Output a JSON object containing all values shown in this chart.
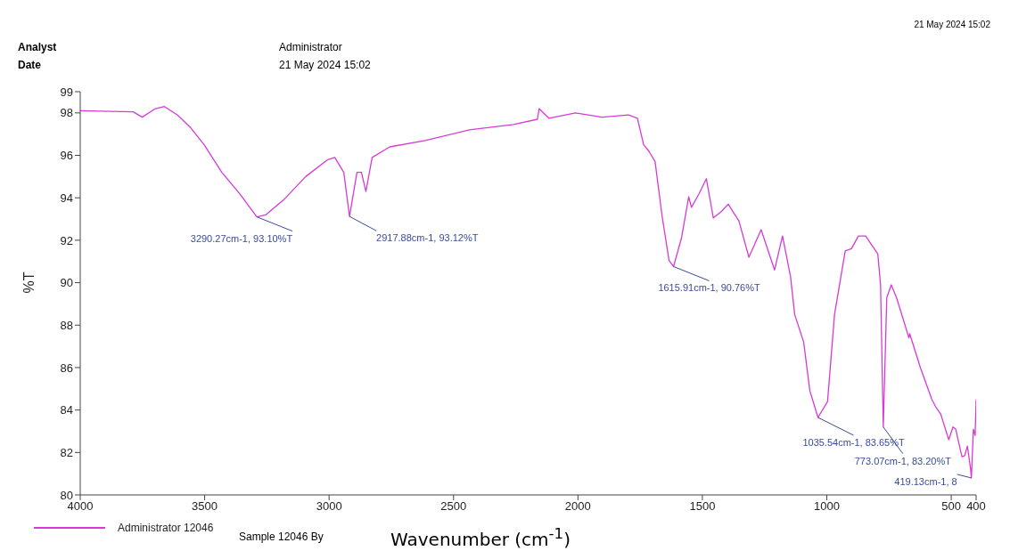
{
  "chart_data": {
    "type": "line",
    "xlabel": "Wavenumber (cm$^{-1}$)",
    "ylabel": "%T",
    "xlim": [
      4000,
      400
    ],
    "xticks": [
      4000,
      3500,
      3000,
      2500,
      2000,
      1500,
      1000,
      500,
      400
    ],
    "ylim": [
      80,
      99
    ],
    "yticks": [
      80,
      82,
      84,
      86,
      88,
      90,
      92,
      94,
      96,
      98,
      99
    ],
    "legend": "bottom left",
    "annotations": [
      "Analyst",
      "Administrator",
      "Date",
      "21 May 2024 15:02",
      "21 May 2024 15:02",
      "Sample 12046 By",
      {
        "text": "3290.27cm-1, 93.10%T",
        "x": 3290.27,
        "y": 93.1
      },
      {
        "text": "2917.88cm-1, 93.12%T",
        "x": 2917.88,
        "y": 93.12
      },
      {
        "text": "1615.91cm-1, 90.76%T",
        "x": 1615.91,
        "y": 90.76
      },
      {
        "text": "1035.54cm-1, 83.65%T",
        "x": 1035.54,
        "y": 83.65
      },
      {
        "text": "773.07cm-1, 83.20%T",
        "x": 773.07,
        "y": 83.2
      },
      {
        "text": "419.13cm-1, 8",
        "x": 419.13,
        "y": 80.8
      }
    ],
    "series": [
      {
        "name": "Administrator 12046",
        "color": "#d63bd6",
        "x": [
          4000,
          3787,
          3751,
          3698,
          3662,
          3609,
          3556,
          3502,
          3431,
          3360,
          3290.27,
          3254,
          3183,
          3094,
          3005,
          2977,
          2941,
          2917.88,
          2888,
          2870,
          2852,
          2827,
          2756,
          2614,
          2436,
          2259,
          2163,
          2156,
          2117,
          2010,
          1903,
          1797,
          1761,
          1736,
          1715,
          1690,
          1662,
          1634,
          1615.91,
          1584,
          1555,
          1544,
          1513,
          1484,
          1456,
          1424,
          1396,
          1353,
          1313,
          1264,
          1210,
          1178,
          1146,
          1129,
          1093,
          1068,
          1035.54,
          997,
          969,
          926,
          901,
          873,
          844,
          795,
          784,
          773.07,
          759,
          741,
          720,
          670,
          667,
          624,
          578,
          560,
          542,
          510,
          493,
          482,
          457,
          446,
          435,
          422,
          419.13,
          411,
          404,
          400
        ],
        "values": [
          98.1,
          98.05,
          97.8,
          98.2,
          98.3,
          97.9,
          97.3,
          96.5,
          95.2,
          94.2,
          93.1,
          93.2,
          93.9,
          95.0,
          95.8,
          95.9,
          95.2,
          93.12,
          95.2,
          95.2,
          94.3,
          95.9,
          96.4,
          96.7,
          97.2,
          97.45,
          97.7,
          98.2,
          97.75,
          98.0,
          97.8,
          97.9,
          97.75,
          96.5,
          96.2,
          95.7,
          93.15,
          91.05,
          90.76,
          92.1,
          94.05,
          93.55,
          94.2,
          94.9,
          93.05,
          93.35,
          93.7,
          92.9,
          91.2,
          92.5,
          90.6,
          92.2,
          90.3,
          88.5,
          87.2,
          84.9,
          83.65,
          84.4,
          88.5,
          91.5,
          91.6,
          92.2,
          92.2,
          91.35,
          89.9,
          83.2,
          89.3,
          89.9,
          89.3,
          87.4,
          87.6,
          86.0,
          84.5,
          84.1,
          83.8,
          82.6,
          83.2,
          83.1,
          81.8,
          81.85,
          82.3,
          81.2,
          80.8,
          83.1,
          82.8,
          84.5
        ]
      }
    ]
  }
}
